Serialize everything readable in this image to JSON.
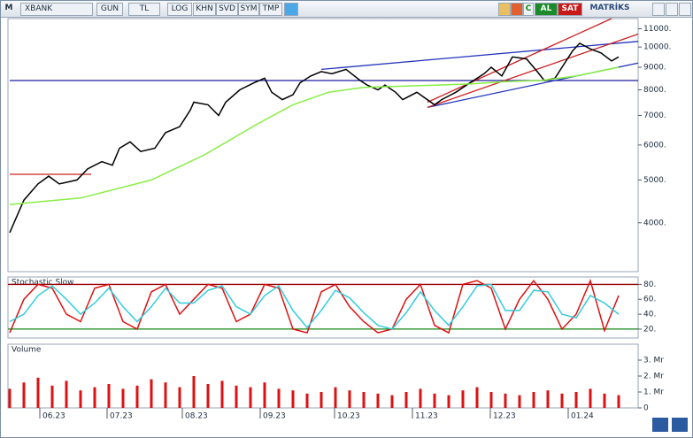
{
  "toolbar": {
    "logo": "M",
    "symbol": "XBANK",
    "buttons": [
      "GUN",
      "TL",
      "LOG",
      "KHN",
      "SVD",
      "SYM",
      "TMP"
    ],
    "c_button": "C",
    "buy": "AL",
    "sell": "SAT",
    "brand": "MATRİKS"
  },
  "chart_data": [
    {
      "type": "line",
      "log": true,
      "xlim": [
        -0.5,
        177.5
      ],
      "ylim": [
        3100,
        11600
      ],
      "yticks": [
        {
          "value": 4000,
          "label": "4000."
        },
        {
          "value": 5000,
          "label": "5000."
        },
        {
          "value": 6000,
          "label": "6000."
        },
        {
          "value": 7000,
          "label": "7000."
        },
        {
          "value": 8000,
          "label": "8000."
        },
        {
          "value": 9000,
          "label": "9000."
        },
        {
          "value": 10000,
          "label": "10000."
        },
        {
          "value": 11000,
          "label": "11000."
        }
      ],
      "series": [
        {
          "color": "#000000",
          "x": [
            0,
            4,
            8,
            11,
            14,
            19,
            22,
            26,
            29,
            31,
            34,
            37,
            41,
            44,
            48,
            51,
            52,
            56,
            59,
            61,
            65,
            69,
            72,
            74,
            77,
            80,
            82,
            85,
            88,
            91,
            95,
            99,
            101,
            104,
            106,
            109,
            111,
            115,
            120,
            122,
            126,
            130,
            134,
            136,
            139,
            142,
            146,
            149,
            151,
            154,
            156,
            159,
            161,
            164,
            167,
            170,
            172
          ],
          "values": [
            3800,
            4500,
            4900,
            5100,
            4900,
            5000,
            5300,
            5500,
            5400,
            5900,
            6100,
            5800,
            5900,
            6400,
            6600,
            7200,
            7500,
            7400,
            7000,
            7500,
            8000,
            8300,
            8500,
            7900,
            7600,
            7800,
            8300,
            8600,
            8800,
            8700,
            8900,
            8400,
            8200,
            8000,
            8200,
            7900,
            7600,
            7900,
            7400,
            7600,
            7900,
            8300,
            8700,
            9000,
            8600,
            9500,
            9400,
            8800,
            8400,
            8500,
            9000,
            9800,
            10200,
            9900,
            9700,
            9300,
            9500
          ]
        },
        {
          "color": "#88ee44",
          "x": [
            0,
            20,
            40,
            55,
            70,
            80,
            90,
            100,
            110,
            120,
            130,
            140,
            150,
            160,
            172
          ],
          "values": [
            4400,
            4550,
            5000,
            5700,
            6700,
            7400,
            7900,
            8100,
            8150,
            8200,
            8250,
            8350,
            8400,
            8600,
            9000
          ]
        }
      ],
      "trendlines": [
        {
          "color": "#1a1aa0",
          "x": [
            0,
            177.5
          ],
          "values": [
            8400,
            8400
          ]
        },
        {
          "color": "#cc2222",
          "x": [
            0,
            23
          ],
          "values": [
            5150,
            5150
          ]
        },
        {
          "color": "#2233bb",
          "x": [
            88,
            177.5
          ],
          "values": [
            8900,
            10300
          ]
        },
        {
          "color": "#2233bb",
          "x": [
            118,
            177.5
          ],
          "values": [
            7300,
            9200
          ]
        },
        {
          "color": "#cc2222",
          "x": [
            118,
            170
          ],
          "values": [
            7500,
            11600
          ]
        },
        {
          "color": "#cc2222",
          "x": [
            118,
            177.5
          ],
          "values": [
            7300,
            10700
          ]
        }
      ]
    },
    {
      "type": "line",
      "title": "Stochastic Slow",
      "xlim": [
        -0.5,
        177.5
      ],
      "ylim": [
        8,
        90
      ],
      "yticks": [
        {
          "value": 20,
          "label": "20."
        },
        {
          "value": 40,
          "label": "40."
        },
        {
          "value": 60,
          "label": "60."
        },
        {
          "value": 80,
          "label": "80."
        }
      ],
      "reference_lines": [
        {
          "value": 80,
          "color": "#990000"
        },
        {
          "value": 20,
          "color": "#118811"
        }
      ],
      "series": [
        {
          "color": "#dd1111",
          "x": [
            0,
            4,
            8,
            12,
            16,
            20,
            24,
            28,
            32,
            36,
            40,
            44,
            48,
            52,
            56,
            60,
            64,
            68,
            72,
            76,
            80,
            84,
            88,
            92,
            96,
            100,
            104,
            108,
            112,
            116,
            120,
            124,
            128,
            132,
            136,
            140,
            144,
            148,
            152,
            156,
            160,
            164,
            168,
            172
          ],
          "values": [
            15,
            60,
            80,
            75,
            40,
            30,
            75,
            80,
            30,
            20,
            70,
            80,
            40,
            60,
            80,
            75,
            30,
            40,
            80,
            75,
            20,
            15,
            70,
            80,
            50,
            30,
            15,
            20,
            60,
            80,
            25,
            15,
            80,
            85,
            75,
            20,
            60,
            85,
            60,
            20,
            40,
            85,
            18,
            65
          ]
        },
        {
          "color": "#33ccdd",
          "x": [
            0,
            4,
            8,
            12,
            16,
            20,
            24,
            28,
            32,
            36,
            40,
            44,
            48,
            52,
            56,
            60,
            64,
            68,
            72,
            76,
            80,
            84,
            88,
            92,
            96,
            100,
            104,
            108,
            112,
            116,
            120,
            124,
            128,
            132,
            136,
            140,
            144,
            148,
            152,
            156,
            160,
            164,
            168,
            172
          ],
          "values": [
            30,
            40,
            65,
            78,
            60,
            40,
            55,
            75,
            50,
            30,
            50,
            75,
            55,
            55,
            72,
            78,
            50,
            40,
            65,
            78,
            45,
            22,
            45,
            72,
            62,
            42,
            25,
            20,
            42,
            70,
            45,
            25,
            50,
            78,
            80,
            45,
            45,
            72,
            70,
            40,
            35,
            65,
            55,
            40
          ]
        }
      ]
    },
    {
      "type": "bar",
      "title": "Volume",
      "xlim": [
        -0.5,
        177.5
      ],
      "ylim": [
        0,
        4
      ],
      "color": "#dd1111",
      "yticks": [
        0,
        {
          "value": 1,
          "label": "1. Mr"
        },
        {
          "value": 2,
          "label": "2. Mr"
        },
        {
          "value": 3,
          "label": "3. Mr"
        }
      ],
      "xticks": [
        {
          "value": 8.5,
          "label": "06.23"
        },
        {
          "value": 27.5,
          "label": "07.23"
        },
        {
          "value": 48.75,
          "label": "08.23"
        },
        {
          "value": 70.75,
          "label": "09.23"
        },
        {
          "value": 91.75,
          "label": "10.23"
        },
        {
          "value": 113.75,
          "label": "11.23"
        },
        {
          "value": 135.75,
          "label": "12.23"
        },
        {
          "value": 157.75,
          "label": "01.24"
        }
      ],
      "x": [
        0,
        4,
        8,
        12,
        16,
        20,
        24,
        28,
        32,
        36,
        40,
        44,
        48,
        52,
        56,
        60,
        64,
        68,
        72,
        76,
        80,
        84,
        88,
        92,
        96,
        100,
        104,
        108,
        112,
        116,
        120,
        124,
        128,
        132,
        136,
        140,
        144,
        148,
        152,
        156,
        160,
        164,
        168,
        172
      ],
      "values": [
        1.2,
        1.6,
        1.9,
        1.4,
        1.7,
        1.1,
        1.3,
        1.5,
        1.2,
        1.4,
        1.8,
        1.6,
        1.3,
        2.0,
        1.5,
        1.7,
        1.4,
        1.3,
        1.6,
        1.2,
        1.1,
        0.9,
        1.0,
        1.3,
        1.1,
        1.0,
        0.9,
        0.8,
        1.0,
        1.2,
        0.9,
        0.8,
        1.1,
        1.3,
        1.0,
        0.9,
        0.8,
        1.0,
        1.1,
        0.9,
        1.0,
        1.2,
        0.9,
        0.8
      ]
    }
  ]
}
